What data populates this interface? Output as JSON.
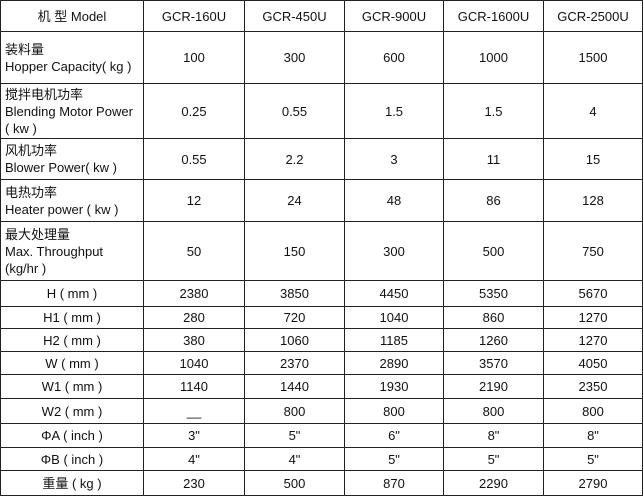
{
  "table": {
    "header": [
      "机 型 Model",
      "GCR-160U",
      "GCR-450U",
      "GCR-900U",
      "GCR-1600U",
      "GCR-2500U"
    ],
    "rows": [
      {
        "label": [
          "装料量",
          "Hopper Capacity( kg )"
        ],
        "values": [
          "100",
          "300",
          "600",
          "1000",
          "1500"
        ]
      },
      {
        "label": [
          "搅拌电机功率",
          "Blending Motor Power",
          "( kw )"
        ],
        "values": [
          "0.25",
          "0.55",
          "1.5",
          "1.5",
          "4"
        ]
      },
      {
        "label": [
          "风机功率",
          "Blower Power( kw )"
        ],
        "values": [
          "0.55",
          "2.2",
          "3",
          "11",
          "15"
        ]
      },
      {
        "label": [
          "电热功率",
          "Heater power ( kw )"
        ],
        "values": [
          "12",
          "24",
          "48",
          "86",
          "128"
        ]
      },
      {
        "label": [
          "最大处理量",
          "Max. Throughput",
          " (kg/hr )"
        ],
        "values": [
          "50",
          "150",
          "300",
          "500",
          "750"
        ]
      },
      {
        "label": [
          "H ( mm )"
        ],
        "values": [
          "2380",
          "3850",
          "4450",
          "5350",
          "5670"
        ]
      },
      {
        "label": [
          "H1 ( mm )"
        ],
        "values": [
          "280",
          "720",
          "1040",
          "860",
          "1270"
        ]
      },
      {
        "label": [
          "H2 ( mm )"
        ],
        "values": [
          "380",
          "1060",
          "1185",
          "1260",
          "1270"
        ]
      },
      {
        "label": [
          "W ( mm )"
        ],
        "values": [
          "1040",
          "2370",
          "2890",
          "3570",
          "4050"
        ]
      },
      {
        "label": [
          "W1 ( mm )"
        ],
        "values": [
          "1140",
          "1440",
          "1930",
          "2190",
          "2350"
        ]
      },
      {
        "label": [
          "W2 ( mm )"
        ],
        "values": [
          "__",
          "800",
          "800",
          "800",
          "800"
        ]
      },
      {
        "label": [
          "ΦA ( inch )"
        ],
        "values": [
          "3\"",
          "5\"",
          "6\"",
          "8\"",
          "8\""
        ]
      },
      {
        "label": [
          "ΦB ( inch )"
        ],
        "values": [
          "4\"",
          "4\"",
          "5\"",
          "5\"",
          "5\""
        ]
      },
      {
        "label": [
          "重量 ( kg )"
        ],
        "values": [
          "230",
          "500",
          "870",
          "2290",
          "2790"
        ]
      }
    ]
  }
}
